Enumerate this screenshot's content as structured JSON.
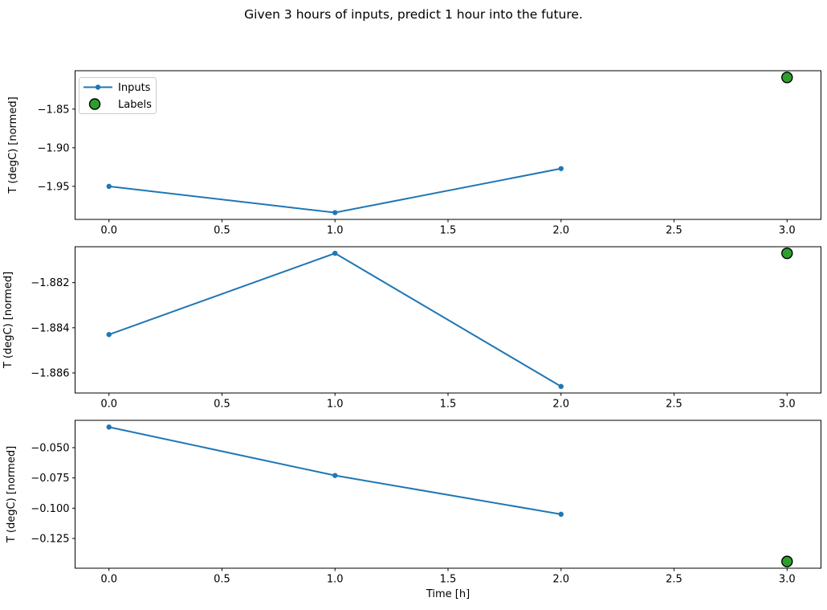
{
  "figure": {
    "title": "Given 3 hours of inputs, predict 1 hour into the future.",
    "background": "#ffffff"
  },
  "colors": {
    "inputs_line": "#1f77b4",
    "labels_fill": "#2ca02c",
    "labels_edge": "#000000",
    "axis": "#000000",
    "tick_text": "#000000",
    "legend_border": "#cccccc",
    "legend_bg": "#ffffff"
  },
  "legend": {
    "position": "upper-left",
    "items": [
      {
        "label": "Inputs",
        "marker": "line-with-dot",
        "color": "#1f77b4"
      },
      {
        "label": "Labels",
        "marker": "filled-circle",
        "color": "#2ca02c"
      }
    ]
  },
  "chart_data": [
    {
      "type": "line",
      "title": "",
      "xlabel": "",
      "ylabel": "T (degC) [normed]",
      "x": [
        0.0,
        1.0,
        2.0
      ],
      "series": [
        {
          "name": "Inputs",
          "values": [
            -1.95,
            -1.984,
            -1.927
          ]
        }
      ],
      "labels_series": {
        "name": "Labels",
        "x": 3.0,
        "y": -1.809
      },
      "xlim": [
        -0.15,
        3.15
      ],
      "ylim": [
        -1.9928,
        -1.8003
      ],
      "xticks": [
        0.0,
        0.5,
        1.0,
        1.5,
        2.0,
        2.5,
        3.0
      ],
      "xtick_labels": [
        "0.0",
        "0.5",
        "1.0",
        "1.5",
        "2.0",
        "2.5",
        "3.0"
      ],
      "yticks": [
        -1.85,
        -1.9,
        -1.95
      ],
      "ytick_labels": [
        "−1.85",
        "−1.90",
        "−1.95"
      ],
      "grid": false,
      "show_legend": true
    },
    {
      "type": "line",
      "title": "",
      "xlabel": "",
      "ylabel": "T (degC) [normed]",
      "x": [
        0.0,
        1.0,
        2.0
      ],
      "series": [
        {
          "name": "Inputs",
          "values": [
            -1.8843,
            -1.8807,
            -1.8866
          ]
        }
      ],
      "labels_series": {
        "name": "Labels",
        "x": 3.0,
        "y": -1.8807
      },
      "xlim": [
        -0.15,
        3.15
      ],
      "ylim": [
        -1.88689,
        -1.88041
      ],
      "xticks": [
        0.0,
        0.5,
        1.0,
        1.5,
        2.0,
        2.5,
        3.0
      ],
      "xtick_labels": [
        "0.0",
        "0.5",
        "1.0",
        "1.5",
        "2.0",
        "2.5",
        "3.0"
      ],
      "yticks": [
        -1.882,
        -1.884,
        -1.886
      ],
      "ytick_labels": [
        "−1.882",
        "−1.884",
        "−1.886"
      ],
      "grid": false,
      "show_legend": false
    },
    {
      "type": "line",
      "title": "",
      "xlabel": "Time [h]",
      "ylabel": "T (degC) [normed]",
      "x": [
        0.0,
        1.0,
        2.0
      ],
      "series": [
        {
          "name": "Inputs",
          "values": [
            -0.033,
            -0.073,
            -0.105
          ]
        }
      ],
      "labels_series": {
        "name": "Labels",
        "x": 3.0,
        "y": -0.144
      },
      "xlim": [
        -0.15,
        3.15
      ],
      "ylim": [
        -0.14955,
        -0.02745
      ],
      "xticks": [
        0.0,
        0.5,
        1.0,
        1.5,
        2.0,
        2.5,
        3.0
      ],
      "xtick_labels": [
        "0.0",
        "0.5",
        "1.0",
        "1.5",
        "2.0",
        "2.5",
        "3.0"
      ],
      "yticks": [
        -0.05,
        -0.075,
        -0.1,
        -0.125
      ],
      "ytick_labels": [
        "−0.050",
        "−0.075",
        "−0.100",
        "−0.125"
      ],
      "grid": false,
      "show_legend": false
    }
  ]
}
